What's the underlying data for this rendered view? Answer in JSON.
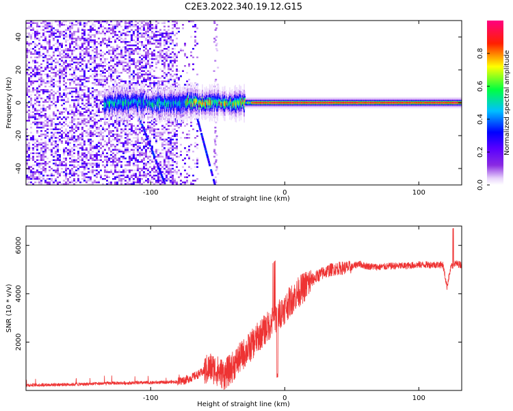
{
  "title": "C2E3.2022.340.19.12.G15",
  "chart_data": [
    {
      "type": "heatmap",
      "name": "spectrogram",
      "xlabel": "Height of straight line (km)",
      "ylabel": "Frequency (Hz)",
      "xlim": [
        -193,
        132
      ],
      "ylim": [
        -50,
        50
      ],
      "xticks": [
        -100,
        0,
        100
      ],
      "xtick_labels": [
        "-100",
        "0",
        "100"
      ],
      "yticks": [
        -40,
        -20,
        0,
        20,
        40
      ],
      "ytick_labels": [
        "-40",
        "-20",
        "0",
        "20",
        "40"
      ],
      "colorbar": {
        "label": "Normalized spectral amplitude",
        "range": [
          0,
          1
        ],
        "ticks": [
          0.0,
          0.2,
          0.4,
          0.6,
          0.8
        ],
        "tick_labels": [
          "0.0",
          "0.2",
          "0.4",
          "0.6",
          "0.8"
        ],
        "colors": [
          "#ffffff",
          "#e8d4fb",
          "#8a2be2",
          "#5a00ff",
          "#0000ff",
          "#00c0ff",
          "#00ff40",
          "#ffff00",
          "#ff2000",
          "#ff0080"
        ]
      },
      "features": {
        "noise_region_x": [
          -193,
          -75
        ],
        "carrier_frequency_hz": 0,
        "carrier_start_x": -135,
        "carrier_strong_x": [
          -25,
          120
        ],
        "spur_tracks": [
          {
            "x": [
              -108,
              -89
            ],
            "y": [
              -10,
              -50
            ]
          },
          {
            "x": [
              -65,
              -52
            ],
            "y": [
              -10,
              -50
            ]
          }
        ]
      }
    },
    {
      "type": "line",
      "name": "snr",
      "xlabel": "Height of straight line (km)",
      "ylabel": "SNR (10 * v/v)",
      "xlim": [
        -193,
        132
      ],
      "ylim": [
        0,
        6800
      ],
      "xticks": [
        -100,
        0,
        100
      ],
      "xtick_labels": [
        "-100",
        "0",
        "100"
      ],
      "yticks": [
        2000,
        4000,
        6000
      ],
      "ytick_labels": [
        "2000",
        "4000",
        "6000"
      ],
      "color": "#ee3333",
      "series": [
        {
          "name": "SNR",
          "x": [
            -193,
            -150,
            -130,
            -100,
            -80,
            -75,
            -70,
            -65,
            -60,
            -55,
            -50,
            -45,
            -40,
            -35,
            -30,
            -25,
            -20,
            -15,
            -10,
            -5,
            0,
            5,
            10,
            15,
            20,
            25,
            30,
            35,
            40,
            50,
            55,
            60,
            70,
            80,
            90,
            100,
            110,
            118,
            121,
            124,
            127,
            132
          ],
          "y": [
            220,
            260,
            300,
            320,
            360,
            420,
            520,
            650,
            800,
            950,
            800,
            650,
            900,
            1250,
            1550,
            1850,
            2200,
            2500,
            2800,
            3100,
            3400,
            3750,
            4050,
            4300,
            4550,
            4750,
            4900,
            5000,
            5050,
            5100,
            5250,
            5150,
            5100,
            5150,
            5150,
            5200,
            5200,
            5200,
            4300,
            5100,
            5250,
            5200
          ]
        }
      ]
    }
  ]
}
